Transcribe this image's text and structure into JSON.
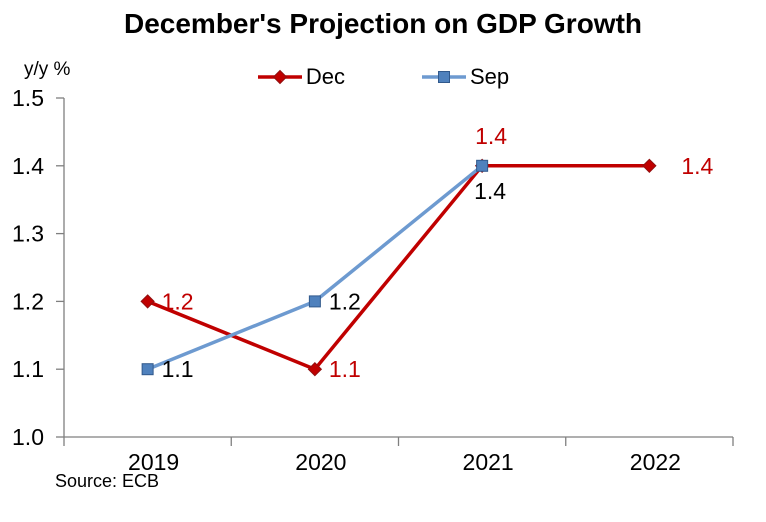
{
  "chart_data": {
    "type": "line",
    "title": "December's Projection on GDP Growth",
    "y_unit_label": "y/y %",
    "source_note": "Source: ECB",
    "categories": [
      "2019",
      "2020",
      "2021",
      "2022"
    ],
    "ylim": [
      1.0,
      1.5
    ],
    "ytick_step": 0.1,
    "ytick_labels": [
      "1.0",
      "1.1",
      "1.2",
      "1.3",
      "1.4",
      "1.5"
    ],
    "grid": false,
    "legend_position": "top-center",
    "axis_color": "#7F7F7F",
    "text_color": "#000000",
    "series": [
      {
        "name": "Dec",
        "values": [
          1.2,
          1.1,
          1.4,
          1.4
        ],
        "data_labels": [
          "1.2",
          "1.1",
          "1.4",
          "1.4"
        ],
        "label_placements": [
          "right",
          "right",
          "above",
          "right-far"
        ],
        "marker": "diamond",
        "line_color": "#C00000",
        "marker_color": "#C00000",
        "marker_edge_color": "#8F1010",
        "label_color": "#C00000"
      },
      {
        "name": "Sep",
        "values": [
          1.1,
          1.2,
          1.4,
          null
        ],
        "data_labels": [
          "1.1",
          "1.2",
          "1.4",
          null
        ],
        "label_placements": [
          "right",
          "right",
          "below",
          null
        ],
        "marker": "square",
        "line_color": "#6D9AD0",
        "marker_color": "#4F81BD",
        "marker_edge_color": "#31598C",
        "label_color": "#000000"
      }
    ]
  }
}
